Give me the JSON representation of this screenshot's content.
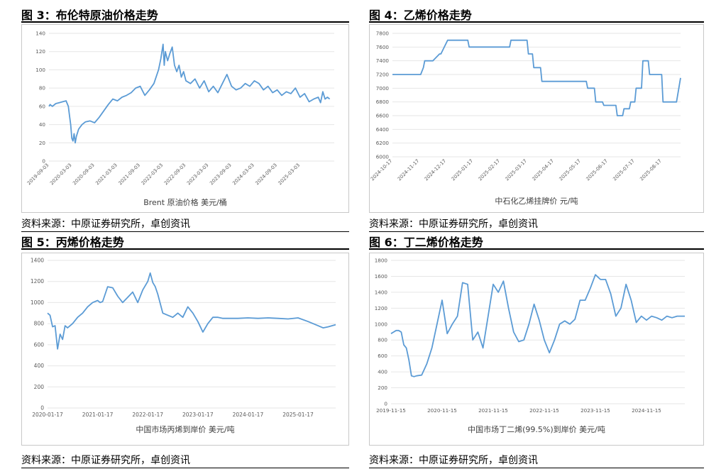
{
  "colors": {
    "line": "#5b9bd5",
    "grid": "#e6e6e6",
    "tick_text": "#595959"
  },
  "source_text": "资料来源：中原证券研究所，卓创资讯",
  "charts": [
    {
      "figure_title": "图 3：布伦特原油价格走势",
      "chart_data": {
        "type": "line",
        "series_name": "Brent 原油价格 美元/桶",
        "ylim": [
          0,
          140
        ],
        "yticks": [
          0,
          20,
          40,
          60,
          80,
          100,
          120,
          140
        ],
        "xlabels": [
          "2019-09-03",
          "2020-03-03",
          "2020-09-03",
          "2021-03-03",
          "2021-09-03",
          "2022-03-03",
          "2022-09-03",
          "2023-03-03",
          "2023-09-03",
          "2024-03-03",
          "2024-09-03",
          "2025-03-03"
        ],
        "tick_rotation": -45,
        "xlim": [
          0,
          12.5
        ],
        "x": [
          0,
          0.05,
          0.15,
          0.3,
          0.45,
          0.6,
          0.75,
          0.85,
          0.9,
          0.95,
          1.0,
          1.05,
          1.1,
          1.15,
          1.2,
          1.3,
          1.45,
          1.6,
          1.8,
          2.0,
          2.2,
          2.4,
          2.6,
          2.8,
          3.0,
          3.2,
          3.4,
          3.6,
          3.8,
          4.0,
          4.2,
          4.4,
          4.6,
          4.8,
          4.9,
          5.0,
          5.05,
          5.1,
          5.2,
          5.3,
          5.4,
          5.5,
          5.6,
          5.7,
          5.8,
          5.9,
          6.0,
          6.2,
          6.4,
          6.6,
          6.8,
          7.0,
          7.2,
          7.4,
          7.6,
          7.8,
          8.0,
          8.2,
          8.4,
          8.6,
          8.8,
          9.0,
          9.2,
          9.4,
          9.6,
          9.8,
          10.0,
          10.2,
          10.4,
          10.6,
          10.8,
          11.0,
          11.2,
          11.4,
          11.6,
          11.8,
          11.9,
          12.0,
          12.1,
          12.2,
          12.3
        ],
        "y": [
          60,
          62,
          60,
          63,
          64,
          65,
          66,
          60,
          50,
          40,
          25,
          22,
          30,
          20,
          27,
          35,
          40,
          43,
          44,
          42,
          48,
          55,
          62,
          68,
          66,
          70,
          72,
          75,
          80,
          82,
          72,
          78,
          85,
          100,
          112,
          128,
          105,
          120,
          110,
          118,
          125,
          105,
          98,
          105,
          92,
          98,
          88,
          85,
          90,
          80,
          88,
          76,
          82,
          75,
          85,
          95,
          82,
          78,
          80,
          85,
          82,
          88,
          85,
          78,
          82,
          75,
          78,
          72,
          76,
          74,
          80,
          70,
          74,
          65,
          68,
          70,
          64,
          76,
          68,
          70,
          68
        ]
      }
    },
    {
      "figure_title": "图 4：乙烯价格走势",
      "chart_data": {
        "type": "line",
        "series_name": "中石化乙烯挂牌价 元/吨",
        "ylim": [
          6000,
          7800
        ],
        "yticks": [
          6000,
          6200,
          6400,
          6600,
          6800,
          7000,
          7200,
          7400,
          7600,
          7800
        ],
        "xlabels": [
          "2024-10-17",
          "2024-11-17",
          "2024-12-17",
          "2025-01-17",
          "2025-02-17",
          "2025-03-17",
          "2025-04-17",
          "2025-05-17",
          "2025-06-17",
          "2025-07-17",
          "2025-08-17"
        ],
        "tick_rotation": -45,
        "xlim": [
          0,
          10.7
        ],
        "x": [
          0,
          1.05,
          1.15,
          1.2,
          1.5,
          1.75,
          1.8,
          2.05,
          2.1,
          2.8,
          2.85,
          4.35,
          4.4,
          5.0,
          5.05,
          5.2,
          5.25,
          5.5,
          5.55,
          7.2,
          7.25,
          7.5,
          7.55,
          7.8,
          7.85,
          8.3,
          8.35,
          8.55,
          8.6,
          8.8,
          8.85,
          9.0,
          9.05,
          9.25,
          9.3,
          9.5,
          9.55,
          10.0,
          10.05,
          10.55,
          10.7
        ],
        "y": [
          7200,
          7200,
          7300,
          7400,
          7400,
          7500,
          7500,
          7700,
          7700,
          7700,
          7600,
          7600,
          7700,
          7700,
          7500,
          7500,
          7300,
          7300,
          7100,
          7100,
          7000,
          7000,
          6800,
          6800,
          6750,
          6750,
          6600,
          6600,
          6700,
          6700,
          6800,
          6800,
          7000,
          7000,
          7400,
          7400,
          7200,
          7200,
          6800,
          6800,
          7150
        ]
      }
    },
    {
      "figure_title": "图 5：丙烯价格走势",
      "chart_data": {
        "type": "line",
        "series_name": "中国市场丙烯到岸价 美元/吨",
        "ylim": [
          0,
          1400
        ],
        "yticks": [
          0,
          200,
          400,
          600,
          800,
          1000,
          1200,
          1400
        ],
        "xlabels": [
          "2020-01-17",
          "2021-01-17",
          "2022-01-17",
          "2023-01-17",
          "2024-01-17",
          "2025-01-17"
        ],
        "tick_rotation": 0,
        "xlim": [
          0,
          5.75
        ],
        "x": [
          0,
          0.05,
          0.1,
          0.15,
          0.2,
          0.25,
          0.3,
          0.35,
          0.4,
          0.5,
          0.6,
          0.7,
          0.8,
          0.9,
          1.0,
          1.05,
          1.1,
          1.2,
          1.3,
          1.4,
          1.5,
          1.6,
          1.7,
          1.8,
          1.9,
          2.0,
          2.05,
          2.1,
          2.15,
          2.2,
          2.3,
          2.4,
          2.5,
          2.6,
          2.7,
          2.8,
          2.9,
          3.0,
          3.1,
          3.2,
          3.3,
          3.4,
          3.5,
          3.6,
          3.8,
          4.0,
          4.2,
          4.4,
          4.6,
          4.8,
          5.0,
          5.2,
          5.4,
          5.5,
          5.6,
          5.75
        ],
        "y": [
          900,
          880,
          770,
          780,
          560,
          700,
          650,
          780,
          760,
          800,
          860,
          900,
          960,
          1000,
          1020,
          1000,
          1010,
          1150,
          1140,
          1060,
          1000,
          1050,
          1100,
          1000,
          1120,
          1200,
          1280,
          1190,
          1150,
          1080,
          900,
          880,
          860,
          900,
          860,
          960,
          900,
          820,
          720,
          800,
          860,
          860,
          850,
          850,
          850,
          855,
          850,
          855,
          850,
          845,
          855,
          820,
          780,
          760,
          770,
          790
        ]
      }
    },
    {
      "figure_title": "图 6：丁二烯价格走势",
      "chart_data": {
        "type": "line",
        "series_name": "中国市场丁二烯(99.5%)到岸价 美元/吨",
        "ylim": [
          0,
          1800
        ],
        "yticks": [
          0,
          200,
          400,
          600,
          800,
          1000,
          1200,
          1400,
          1600,
          1800
        ],
        "xlabels": [
          "2019-11-15",
          "2020-11-15",
          "2021-11-15",
          "2022-11-15",
          "2023-11-15",
          "2024-11-15"
        ],
        "tick_rotation": 0,
        "xlim": [
          0,
          5.75
        ],
        "x": [
          0,
          0.05,
          0.1,
          0.15,
          0.2,
          0.25,
          0.3,
          0.35,
          0.4,
          0.45,
          0.5,
          0.6,
          0.7,
          0.8,
          0.9,
          1.0,
          1.1,
          1.2,
          1.3,
          1.4,
          1.5,
          1.6,
          1.7,
          1.8,
          1.9,
          2.0,
          2.1,
          2.2,
          2.3,
          2.4,
          2.5,
          2.6,
          2.7,
          2.8,
          2.9,
          3.0,
          3.1,
          3.2,
          3.3,
          3.4,
          3.5,
          3.6,
          3.7,
          3.8,
          3.9,
          4.0,
          4.1,
          4.2,
          4.3,
          4.4,
          4.5,
          4.6,
          4.7,
          4.8,
          4.9,
          5.0,
          5.1,
          5.2,
          5.3,
          5.4,
          5.5,
          5.6,
          5.75
        ],
        "y": [
          880,
          900,
          920,
          920,
          900,
          740,
          700,
          550,
          350,
          340,
          350,
          360,
          500,
          700,
          1000,
          1300,
          880,
          1000,
          1100,
          1520,
          1500,
          800,
          900,
          700,
          1100,
          1500,
          1400,
          1540,
          1200,
          900,
          780,
          800,
          1000,
          1250,
          1050,
          800,
          640,
          800,
          1000,
          1040,
          1000,
          1060,
          1300,
          1300,
          1450,
          1620,
          1560,
          1560,
          1380,
          1100,
          1200,
          1500,
          1300,
          1020,
          1100,
          1050,
          1100,
          1080,
          1050,
          1100,
          1080,
          1100,
          1100
        ]
      }
    }
  ]
}
